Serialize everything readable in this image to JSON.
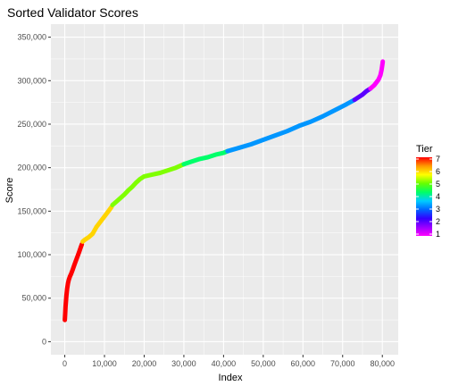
{
  "chart_data": {
    "type": "scatter",
    "title": "Sorted Validator Scores",
    "xlabel": "Index",
    "ylabel": "Score",
    "xlim": [
      -3500,
      84000
    ],
    "ylim": [
      -15000,
      365000
    ],
    "x_ticks": [
      0,
      10000,
      20000,
      30000,
      40000,
      50000,
      60000,
      70000,
      80000
    ],
    "x_tick_labels": [
      "0",
      "10,000",
      "20,000",
      "30,000",
      "40,000",
      "50,000",
      "60,000",
      "70,000",
      "80,000"
    ],
    "y_ticks": [
      0,
      50000,
      100000,
      150000,
      200000,
      250000,
      300000,
      350000
    ],
    "y_tick_labels": [
      "0",
      "50,000",
      "100,000",
      "150,000",
      "200,000",
      "250,000",
      "300,000",
      "350,000"
    ],
    "grid": true,
    "legend_position": "right",
    "series": [
      {
        "name": "7",
        "color": "#ff0000",
        "x": [
          0,
          100,
          200,
          400,
          600,
          800,
          1000,
          1300,
          1600,
          2000,
          2400,
          2800,
          3200,
          3600,
          4000,
          4300
        ],
        "y": [
          25000,
          32000,
          40000,
          52000,
          61000,
          67000,
          71000,
          75000,
          78000,
          83000,
          88000,
          93000,
          98000,
          103000,
          108000,
          112000
        ]
      },
      {
        "name": "6",
        "color": "#ffd400",
        "x": [
          4500,
          5000,
          6000,
          7000,
          8000,
          9000,
          10000,
          11000,
          11800
        ],
        "y": [
          115000,
          117000,
          120000,
          124000,
          132000,
          138000,
          144000,
          150000,
          155000
        ]
      },
      {
        "name": "5",
        "color": "#7fff00",
        "x": [
          12000,
          13000,
          14000,
          15000,
          16000,
          17000,
          18000,
          19000,
          20000,
          21000,
          22000,
          24000,
          26000,
          28000,
          30000
        ],
        "y": [
          157000,
          161000,
          165000,
          169000,
          174000,
          178000,
          183000,
          187000,
          190000,
          191000,
          192000,
          194000,
          197000,
          200000,
          204000
        ]
      },
      {
        "name": "4",
        "color": "#00ff6a",
        "x": [
          30000,
          32000,
          34000,
          36000,
          38000,
          40000,
          41000
        ],
        "y": [
          204000,
          207000,
          210000,
          212000,
          215000,
          217000,
          219000
        ]
      },
      {
        "name": "3",
        "color": "#0096ff",
        "x": [
          41000,
          44000,
          47000,
          50000,
          53000,
          56000,
          59000,
          62000,
          65000,
          68000,
          71000,
          73000
        ],
        "y": [
          219000,
          223000,
          227000,
          232000,
          237000,
          242000,
          248000,
          253000,
          259000,
          266000,
          273000,
          278000
        ]
      },
      {
        "name": "2",
        "color": "#5a00ff",
        "x": [
          73000,
          74000,
          75000,
          76000,
          77000
        ],
        "y": [
          278000,
          281000,
          284000,
          288000,
          291000
        ]
      },
      {
        "name": "1",
        "color": "#ff00ff",
        "x": [
          77000,
          78000,
          79000,
          79500,
          79800,
          80000,
          80100
        ],
        "y": [
          291000,
          295000,
          301000,
          306000,
          312000,
          318000,
          322000
        ]
      }
    ],
    "legend": {
      "title": "Tier",
      "labels": [
        "7",
        "6",
        "5",
        "4",
        "3",
        "2",
        "1"
      ],
      "colors": [
        "#ff0000",
        "#ff9900",
        "#ffff00",
        "#66ff00",
        "#00ff66",
        "#00ccff",
        "#0066ff",
        "#3300ff",
        "#9900ff",
        "#ff00ff"
      ]
    },
    "panel_background": "#ebebeb",
    "grid_color": "#ffffff"
  }
}
